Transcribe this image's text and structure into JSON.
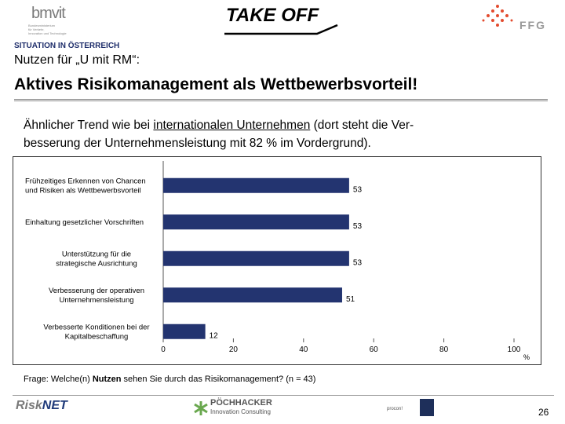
{
  "header": {
    "left_logo": "bmvit",
    "left_logo_sub": [
      "Bundesministerium",
      "für Verkehr,",
      "Innovation und Technologie"
    ],
    "center_logo": "TAKE OFF",
    "right_logo": "FFG"
  },
  "section_label": "SITUATION IN ÖSTERREICH",
  "subtitle": "Nutzen für „U mit RM“:",
  "headline": "Aktives Risikomanagement als Wettbewerbsvorteil!",
  "intro": {
    "part1": "Ähnlicher Trend wie bei ",
    "underlined": "internationalen Unternehmen",
    "part2": " (dort steht die Ver-",
    "line2": "besserung der Unternehmensleistung mit 82 % im Vordergrund)."
  },
  "chart_data": {
    "type": "bar",
    "orientation": "horizontal",
    "categories": [
      [
        "Frühzeitiges Erkennen von Chancen",
        "und Risiken als Wettbewerbsvorteil"
      ],
      [
        "Einhaltung gesetzlicher Vorschriften"
      ],
      [
        "Unterstützung für die",
        "strategische Ausrichtung"
      ],
      [
        "Verbesserung der operativen",
        "Unternehmensleistung"
      ],
      [
        "Verbesserte Konditionen bei der",
        "Kapitalbeschaffung"
      ]
    ],
    "values": [
      53,
      53,
      53,
      51,
      12
    ],
    "xlim": [
      0,
      100
    ],
    "xticks": [
      0,
      20,
      40,
      60,
      80,
      100
    ],
    "xunit": "%",
    "bar_color": "#233470",
    "grid": false
  },
  "footnote": {
    "pre": "Frage: Welche(n) ",
    "bold": "Nutzen",
    "post": " sehen Sie durch das Risikomanagement? (n = 43)"
  },
  "footer": {
    "logo1_a": "Risk",
    "logo1_b": "NET",
    "logo2": "PÖCHHACKER",
    "logo2_sub": "Innovation Consulting",
    "logo3": "procon!",
    "page_number": "26"
  }
}
